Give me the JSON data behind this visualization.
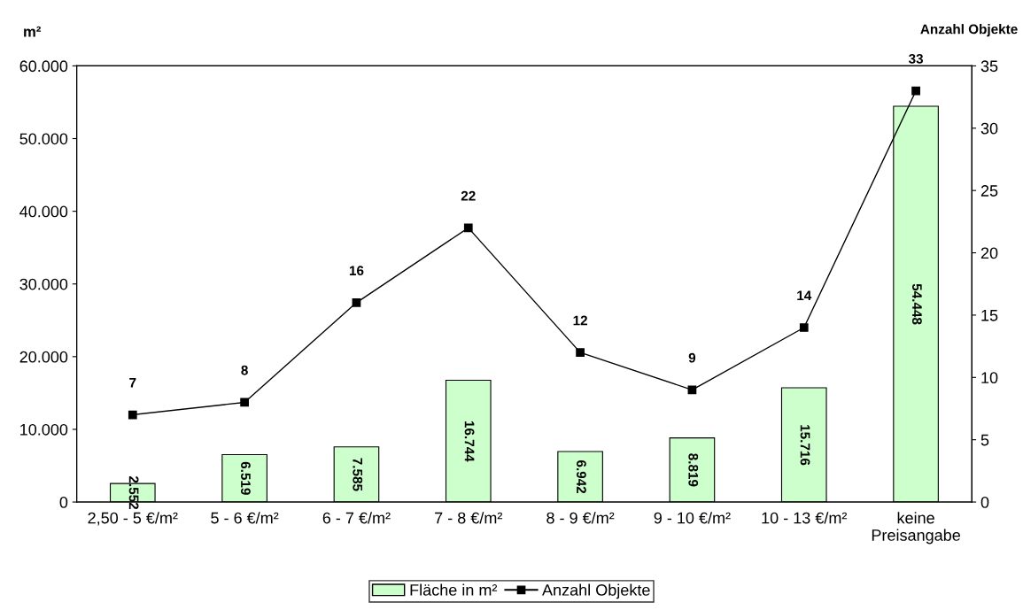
{
  "chart_data": {
    "type": "bar",
    "ylabel": "m²",
    "y2label": "Anzahl Objekte",
    "categories": [
      "2,50 - 5 €/m²",
      "5 - 6 €/m²",
      "6 - 7 €/m²",
      "7 - 8 €/m²",
      "8 - 9 €/m²",
      "9 - 10 €/m²",
      "10 - 13 €/m²",
      "keine\nPreisangabe"
    ],
    "series": [
      {
        "name": "Fläche in m²",
        "color": "#ccffcc",
        "values": [
          2552,
          6519,
          7585,
          16744,
          6942,
          8819,
          15716,
          54448
        ],
        "value_labels": [
          "2.552",
          "6.519",
          "7.585",
          "16.744",
          "6.942",
          "8.819",
          "15.716",
          "54.448"
        ]
      },
      {
        "name": "Anzahl Objekte",
        "type": "line",
        "axis": "y2",
        "color": "#000000",
        "marker": "square",
        "values": [
          7,
          8,
          16,
          22,
          12,
          9,
          14,
          33
        ],
        "value_labels": [
          "7",
          "8",
          "16",
          "22",
          "12",
          "9",
          "14",
          "33"
        ]
      }
    ],
    "ylim": [
      0,
      60000
    ],
    "yticks": [
      {
        "value": 0,
        "label": "0"
      },
      {
        "value": 10000,
        "label": "10.000"
      },
      {
        "value": 20000,
        "label": "20.000"
      },
      {
        "value": 30000,
        "label": "30.000"
      },
      {
        "value": 40000,
        "label": "40.000"
      },
      {
        "value": 50000,
        "label": "50.000"
      },
      {
        "value": 60000,
        "label": "60.000"
      }
    ],
    "y2lim": [
      0,
      35
    ],
    "y2ticks": [
      0,
      5,
      10,
      15,
      20,
      25,
      30,
      35
    ],
    "legend": "bottom",
    "grid": false
  }
}
